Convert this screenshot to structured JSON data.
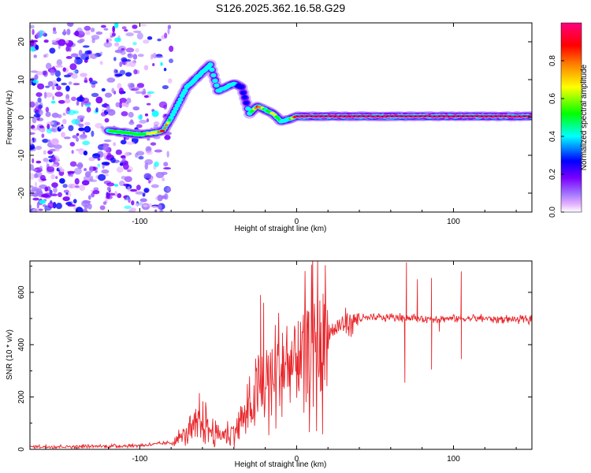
{
  "figure_title": "S126.2025.362.16.58.G29",
  "colors": {
    "snr_line": "#e8262b",
    "axes": "#000000",
    "colormap": [
      "#ffffff",
      "#e6b3ff",
      "#a070ff",
      "#7a00ff",
      "#0000ff",
      "#00ffff",
      "#00ff00",
      "#ffff00",
      "#ff8000",
      "#ff0000",
      "#ff0080"
    ]
  },
  "chart_data": [
    {
      "type": "heatmap",
      "name": "spectrogram",
      "title": "",
      "xlabel": "Height of straight line (km)",
      "ylabel": "Frequency (Hz)",
      "xlim": [
        -170,
        150
      ],
      "ylim": [
        -25,
        25
      ],
      "xticks": [
        -100,
        0,
        100
      ],
      "yticks": [
        -20,
        -10,
        0,
        10,
        20
      ],
      "grid": false,
      "colorbar": {
        "label": "Normalized spectral amplitude",
        "range": [
          0.0,
          1.0
        ],
        "ticks": [
          "0.0",
          "0.2",
          "0.4",
          "0.6",
          "0.8"
        ]
      },
      "ridge": {
        "x": [
          -120,
          -110,
          -100,
          -90,
          -85,
          -80,
          -75,
          -70,
          -65,
          -60,
          -55,
          -50,
          -45,
          -40,
          -35,
          -30,
          -25,
          -20,
          -15,
          -10,
          -5,
          0,
          10,
          20,
          40,
          60,
          80,
          100,
          120,
          150
        ],
        "freq": [
          -3.5,
          -4,
          -4.5,
          -4,
          -3.5,
          0,
          4,
          8,
          10,
          12,
          14,
          7,
          8,
          9,
          8,
          1,
          3,
          2,
          1,
          -1,
          -0.5,
          0.3,
          0.3,
          0.3,
          0.3,
          0.3,
          0.3,
          0.3,
          0.3,
          0.3
        ],
        "amplitude": [
          0.4,
          0.45,
          0.5,
          0.55,
          0.85,
          0.4,
          0.35,
          0.35,
          0.3,
          0.35,
          0.35,
          0.35,
          0.35,
          0.3,
          0.2,
          0.3,
          0.85,
          0.4,
          0.6,
          0.4,
          0.4,
          0.95,
          0.95,
          0.95,
          0.95,
          0.95,
          0.95,
          0.95,
          0.95,
          0.95
        ]
      },
      "noise_region_km": [
        -170,
        -80
      ]
    },
    {
      "type": "line",
      "name": "snr",
      "title": "",
      "xlabel": "Height of straight line (km)",
      "ylabel": "SNR (10 * v/v)",
      "xlim": [
        -170,
        150
      ],
      "ylim": [
        0,
        720
      ],
      "xticks": [
        -100,
        0,
        100
      ],
      "yticks": [
        0,
        200,
        400,
        600
      ],
      "grid": false,
      "series": [
        {
          "name": "SNR",
          "baseline_x": [
            -170,
            -120,
            -100,
            -80,
            -70,
            -60,
            -50,
            -40,
            -30,
            -20,
            -10,
            0,
            10,
            20,
            30,
            40,
            60,
            80,
            100,
            120,
            150
          ],
          "baseline_y": [
            10,
            12,
            15,
            25,
            60,
            100,
            50,
            70,
            150,
            250,
            300,
            330,
            390,
            440,
            480,
            500,
            505,
            500,
            500,
            500,
            495
          ],
          "spikes": [
            {
              "x": -62,
              "y": 215
            },
            {
              "x": -58,
              "y": 180
            },
            {
              "x": -23,
              "y": 590
            },
            {
              "x": -21,
              "y": 560
            },
            {
              "x": -18,
              "y": 330
            },
            {
              "x": 1,
              "y": 490
            },
            {
              "x": 7,
              "y": 460
            },
            {
              "x": 70,
              "y": 715
            },
            {
              "x": 69,
              "y": 255
            },
            {
              "x": 77,
              "y": 650
            },
            {
              "x": 86,
              "y": 655
            },
            {
              "x": 86,
              "y": 305
            },
            {
              "x": 91,
              "y": 450
            },
            {
              "x": 105,
              "y": 680
            },
            {
              "x": 105,
              "y": 345
            }
          ]
        }
      ]
    }
  ]
}
